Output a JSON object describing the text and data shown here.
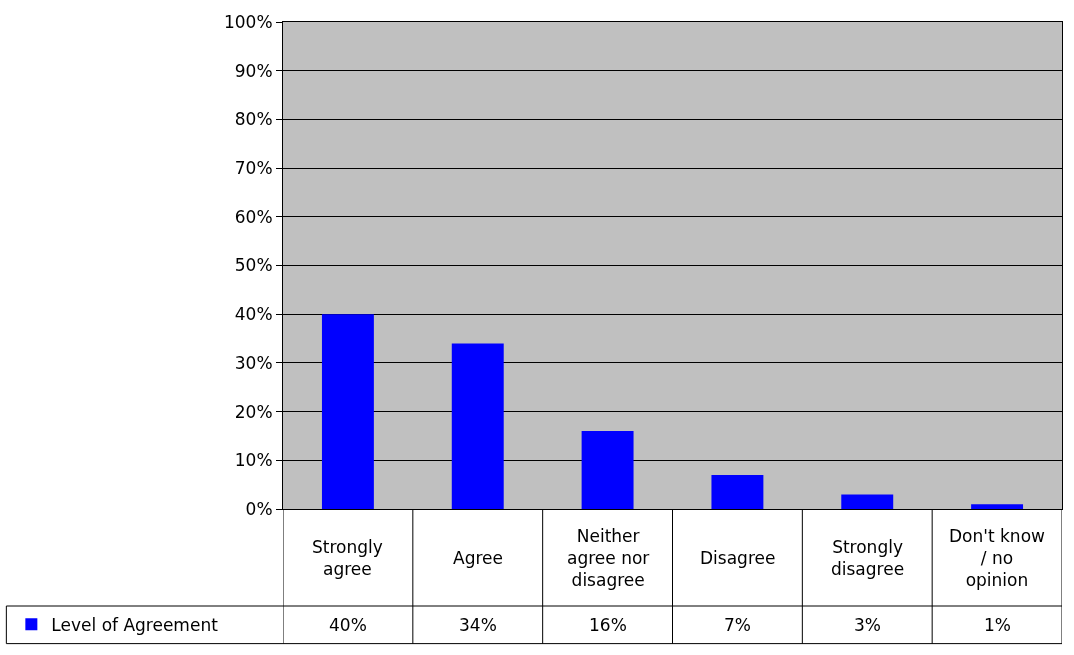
{
  "chart_data": {
    "type": "bar",
    "categories": [
      "Strongly agree",
      "Agree",
      "Neither agree nor disagree",
      "Disagree",
      "Strongly disagree",
      "Don't know / no opinion"
    ],
    "series": [
      {
        "name": "Level of Agreement",
        "color": "#0000ff",
        "values": [
          40,
          34,
          16,
          7,
          3,
          1
        ],
        "value_labels": [
          "40%",
          "34%",
          "16%",
          "7%",
          "3%",
          "1%"
        ]
      }
    ],
    "ylim": [
      0,
      100
    ],
    "yticks": [
      {
        "value": 0,
        "label": "0%"
      },
      {
        "value": 10,
        "label": "10%"
      },
      {
        "value": 20,
        "label": "20%"
      },
      {
        "value": 30,
        "label": "30%"
      },
      {
        "value": 40,
        "label": "40%"
      },
      {
        "value": 50,
        "label": "50%"
      },
      {
        "value": 60,
        "label": "60%"
      },
      {
        "value": 70,
        "label": "70%"
      },
      {
        "value": 80,
        "label": "80%"
      },
      {
        "value": 90,
        "label": "90%"
      },
      {
        "value": 100,
        "label": "100%"
      }
    ],
    "grid": "y",
    "legend": "bottom left"
  }
}
